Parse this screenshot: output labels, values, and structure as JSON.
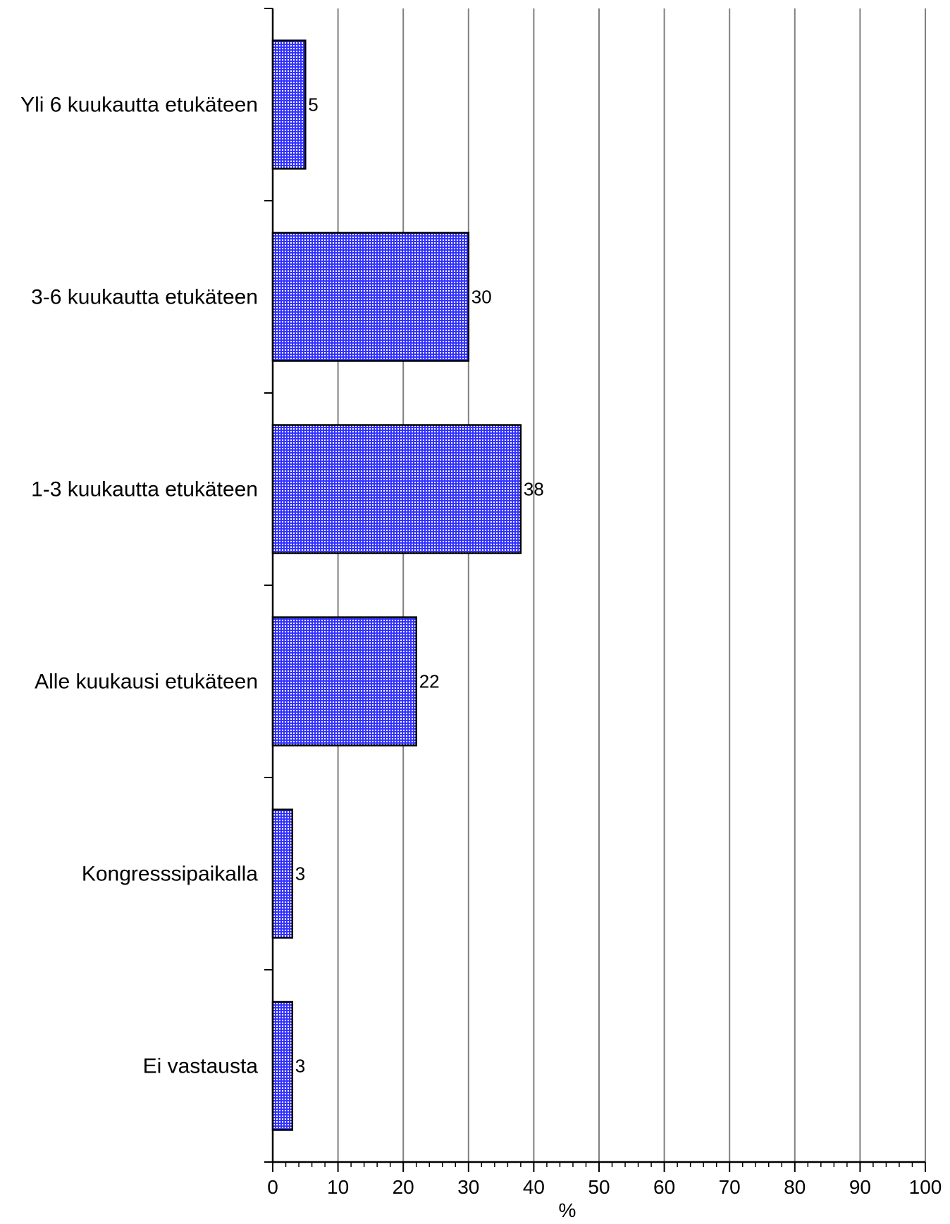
{
  "chart_data": {
    "type": "bar",
    "orientation": "horizontal",
    "categories": [
      "Yli 6 kuukautta etukäteen",
      "3-6 kuukautta etukäteen",
      "1-3 kuukautta etukäteen",
      "Alle kuukausi etukäteen",
      "Kongresssipaikalla",
      "Ei vastausta"
    ],
    "values": [
      5,
      30,
      38,
      22,
      3,
      3
    ],
    "value_labels": [
      "5",
      "30",
      "38",
      "22",
      "3",
      "3"
    ],
    "xlabel": "%",
    "ylabel": "",
    "xlim": [
      0,
      100
    ],
    "x_ticks": [
      0,
      10,
      20,
      30,
      40,
      50,
      60,
      70,
      80,
      90,
      100
    ],
    "x_tick_labels": [
      "0",
      "10",
      "20",
      "30",
      "40",
      "50",
      "60",
      "70",
      "80",
      "90",
      "100"
    ],
    "grid": "vertical",
    "legend": "none",
    "colors": {
      "bar_fill": "#3333ff",
      "bar_pattern": "#ffffff",
      "bar_edge": "#000000",
      "grid": "#808080",
      "axis": "#000000"
    }
  }
}
